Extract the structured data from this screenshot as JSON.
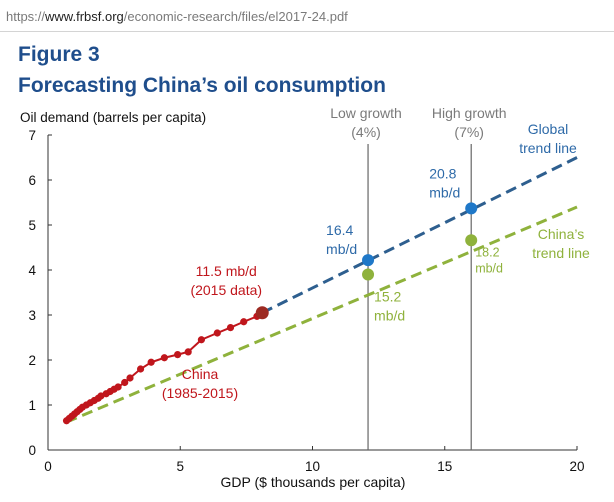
{
  "browser": {
    "url_scheme": "https://",
    "url_domain": "www.frbsf.org",
    "url_path": "/economic-research/files/el2017-24.pdf"
  },
  "figure": {
    "label": "Figure 3",
    "title": "Forecasting China’s oil consumption"
  },
  "chart_data": {
    "type": "line",
    "ylabel": "Oil demand (barrels per capita)",
    "xlabel": "GDP ($ thousands per capita)",
    "xlim": [
      0,
      20
    ],
    "ylim": [
      0,
      7
    ],
    "x_ticks": [
      "0",
      "5",
      "10",
      "15",
      "20"
    ],
    "y_ticks": [
      "0",
      "1",
      "2",
      "3",
      "4",
      "5",
      "6",
      "7"
    ],
    "grid": false,
    "colors": {
      "china_data": "#c0161c",
      "global_trend": "#2e5f8f",
      "china_trend": "#8fb23c",
      "marker_global": "#1f78c8",
      "marker_china": "#8fb23c",
      "marker_2015": "#9c2a22",
      "vline": "#666666"
    },
    "series": [
      {
        "key": "china",
        "x": [
          0.7,
          0.8,
          0.9,
          1.0,
          1.1,
          1.2,
          1.3,
          1.45,
          1.6,
          1.75,
          1.9,
          2.0,
          2.2,
          2.35,
          2.5,
          2.65,
          2.9,
          3.1,
          3.5,
          3.9,
          4.4,
          4.9,
          5.3,
          5.8,
          6.4,
          6.9,
          7.4,
          7.9
        ],
        "y": [
          0.65,
          0.7,
          0.75,
          0.8,
          0.85,
          0.9,
          0.95,
          1.0,
          1.05,
          1.1,
          1.15,
          1.2,
          1.25,
          1.3,
          1.35,
          1.4,
          1.5,
          1.6,
          1.8,
          1.95,
          2.05,
          2.12,
          2.18,
          2.45,
          2.6,
          2.72,
          2.85,
          2.97
        ]
      },
      {
        "key": "global_trend",
        "x": [
          8.1,
          20
        ],
        "y": [
          3.05,
          6.5
        ]
      },
      {
        "key": "china_trend",
        "x": [
          0.7,
          20
        ],
        "y": [
          0.62,
          5.4
        ]
      }
    ],
    "vlines": [
      {
        "x": 12.1,
        "label_line1": "Low growth",
        "label_line2": "(4%)"
      },
      {
        "x": 16.0,
        "label_line1": "High growth",
        "label_line2": "(7%)"
      }
    ],
    "markers": [
      {
        "x": 8.1,
        "y": 3.05,
        "kind": "marker_2015",
        "label_line1": "11.5 mb/d",
        "label_line2": "(2015 data)"
      },
      {
        "x": 12.1,
        "y": 4.22,
        "kind": "marker_global",
        "label_line1": "16.4",
        "label_line2": "mb/d"
      },
      {
        "x": 12.1,
        "y": 3.9,
        "kind": "marker_china",
        "label_line1": "15.2",
        "label_line2": "mb/d"
      },
      {
        "x": 16.0,
        "y": 5.37,
        "kind": "marker_global",
        "label_line1": "20.8",
        "label_line2": "mb/d"
      },
      {
        "x": 16.0,
        "y": 4.66,
        "kind": "marker_china",
        "label_line1": "18.2",
        "label_line2": "mb/d"
      }
    ],
    "annotations": {
      "global_trend_label": [
        "Global",
        "trend line"
      ],
      "china_trend_label": [
        "China’s",
        "trend line"
      ],
      "china_data_label": [
        "China",
        "(1985-2015)"
      ]
    }
  }
}
